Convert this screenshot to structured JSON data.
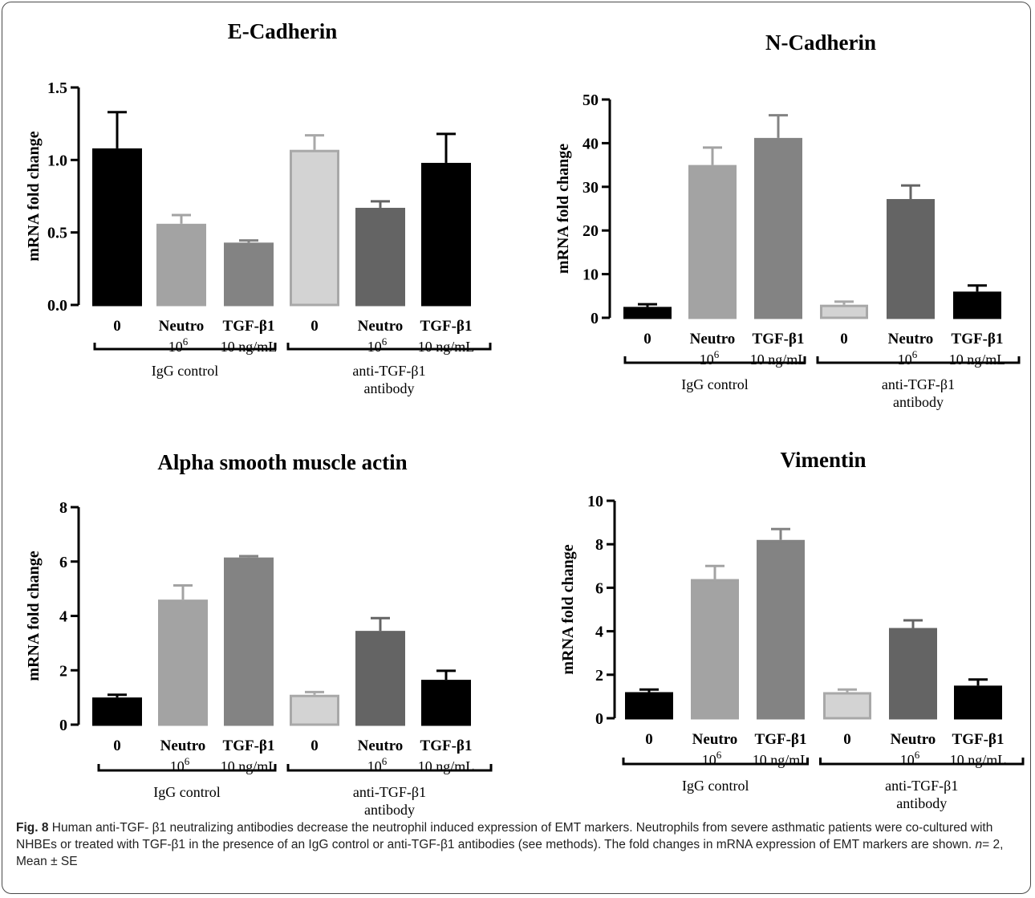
{
  "chart_data": [
    {
      "type": "bar",
      "title": "E-Cadherin",
      "ylabel": "mRNA fold change",
      "ylim": [
        0,
        1.5
      ],
      "yticks": [
        "0.0",
        "0.5",
        "1.0",
        "1.5"
      ],
      "categories": [
        "0",
        "Neutro",
        "TGF-β1",
        "0",
        "Neutro",
        "TGF-β1"
      ],
      "category_sublabels": [
        "",
        "10",
        "10 ng/mL",
        "",
        "10",
        "10 ng/mL"
      ],
      "values": [
        1.08,
        0.56,
        0.43,
        1.07,
        0.67,
        0.98
      ],
      "errors": [
        0.25,
        0.06,
        0.015,
        0.1,
        0.045,
        0.2
      ],
      "groups": [
        {
          "label_lines": [
            "IgG control"
          ],
          "start": 0,
          "end": 2
        },
        {
          "label_lines": [
            "anti-TGF-β1",
            "antibody"
          ],
          "start": 3,
          "end": 5
        }
      ]
    },
    {
      "type": "bar",
      "title": "N-Cadherin",
      "ylabel": "mRNA fold change",
      "ylim": [
        0,
        50
      ],
      "yticks": [
        "0",
        "10",
        "20",
        "30",
        "40",
        "50"
      ],
      "categories": [
        "0",
        "Neutro",
        "TGF-β1",
        "0",
        "Neutro",
        "TGF-β1"
      ],
      "category_sublabels": [
        "",
        "10",
        "10 ng/mL",
        "",
        "10",
        "10 ng/mL"
      ],
      "values": [
        2.5,
        35,
        41.2,
        3,
        27.2,
        6
      ],
      "errors": [
        0.6,
        4,
        5.2,
        0.7,
        3.1,
        1.4
      ],
      "groups": [
        {
          "label_lines": [
            "IgG control"
          ],
          "start": 0,
          "end": 2
        },
        {
          "label_lines": [
            "anti-TGF-β1",
            "antibody"
          ],
          "start": 3,
          "end": 5
        }
      ]
    },
    {
      "type": "bar",
      "title": "Alpha smooth muscle actin",
      "ylabel": "mRNA fold change",
      "ylim": [
        0,
        8
      ],
      "yticks": [
        "0",
        "2",
        "4",
        "6",
        "8"
      ],
      "categories": [
        "0",
        "Neutro",
        "TGF-β1",
        "0",
        "Neutro",
        "TGF-β1"
      ],
      "category_sublabels": [
        "",
        "10",
        "10 ng/mL",
        "",
        "10",
        "10 ng/mL"
      ],
      "values": [
        1.0,
        4.6,
        6.15,
        1.1,
        3.45,
        1.65
      ],
      "errors": [
        0.1,
        0.52,
        0.05,
        0.1,
        0.47,
        0.33
      ],
      "groups": [
        {
          "label_lines": [
            "IgG control"
          ],
          "start": 0,
          "end": 2
        },
        {
          "label_lines": [
            "anti-TGF-β1",
            "antibody"
          ],
          "start": 3,
          "end": 5
        }
      ]
    },
    {
      "type": "bar",
      "title": "Vimentin",
      "ylabel": "mRNA fold change",
      "ylim": [
        0,
        10
      ],
      "yticks": [
        "0",
        "2",
        "4",
        "6",
        "8",
        "10"
      ],
      "categories": [
        "0",
        "Neutro",
        "TGF-β1",
        "0",
        "Neutro",
        "TGF-β1"
      ],
      "category_sublabels": [
        "",
        "10",
        "10 ng/mL",
        "",
        "10",
        "10 ng/mL"
      ],
      "values": [
        1.2,
        6.4,
        8.2,
        1.2,
        4.15,
        1.5
      ],
      "errors": [
        0.12,
        0.6,
        0.5,
        0.12,
        0.35,
        0.28
      ],
      "groups": [
        {
          "label_lines": [
            "IgG control"
          ],
          "start": 0,
          "end": 2
        },
        {
          "label_lines": [
            "anti-TGF-β1",
            "antibody"
          ],
          "start": 3,
          "end": 5
        }
      ]
    }
  ],
  "neutro_exponent": "6",
  "bar_colors": [
    "#000000",
    "#a3a3a3",
    "#838383",
    "#d3d3d3",
    "#646464",
    "#000000"
  ],
  "bar_edge_colors": [
    "#000000",
    "#a3a3a3",
    "#838383",
    "#a8a8a8",
    "#646464",
    "#000000"
  ],
  "caption": {
    "label": "Fig. 8",
    "text": " Human anti-TGF- β1 neutralizing antibodies decrease the neutrophil induced expression of EMT markers. Neutrophils from severe asthmatic patients were co-cultured with NHBEs or treated with TGF-β1 in the presence of an IgG control or anti-TGF-β1 antibodies (see methods). The fold changes in mRNA expression of EMT markers are shown. ",
    "n_label": "n",
    "n_text": "= 2, Mean ± SE"
  }
}
